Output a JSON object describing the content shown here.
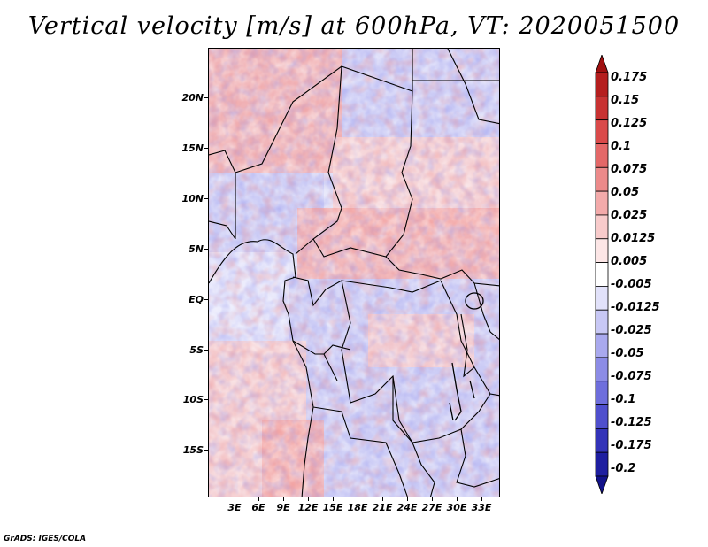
{
  "title": "Vertical velocity [m/s] at 600hPa, VT: 2020051500",
  "footer": "GrADS: IGES/COLA",
  "map": {
    "variable": "Vertical velocity",
    "units": "m/s",
    "level": "600hPa",
    "valid_time": "2020051500",
    "lat_labels": [
      "20N",
      "15N",
      "10N",
      "5N",
      "EQ",
      "5S",
      "10S",
      "15S"
    ],
    "lon_labels": [
      "3E",
      "6E",
      "9E",
      "12E",
      "15E",
      "18E",
      "21E",
      "24E",
      "27E",
      "30E",
      "33E"
    ]
  },
  "colorbar": {
    "labels": [
      "0.175",
      "0.15",
      "0.125",
      "0.1",
      "0.075",
      "0.05",
      "0.025",
      "0.0125",
      "0.005",
      "-0.005",
      "-0.0125",
      "-0.025",
      "-0.05",
      "-0.075",
      "-0.1",
      "-0.125",
      "-0.175",
      "-0.2"
    ],
    "colors": [
      "#a01010",
      "#b51e1e",
      "#c83232",
      "#da4a4a",
      "#e46868",
      "#ec8a8a",
      "#f3aaaa",
      "#f8cbcb",
      "#fce6e6",
      "#ffffff",
      "#e2e2fa",
      "#c8c8f5",
      "#a9a9ee",
      "#8c8ce6",
      "#6e6edc",
      "#4f4fcd",
      "#3333b8",
      "#1e1ea0",
      "#12128a"
    ]
  }
}
